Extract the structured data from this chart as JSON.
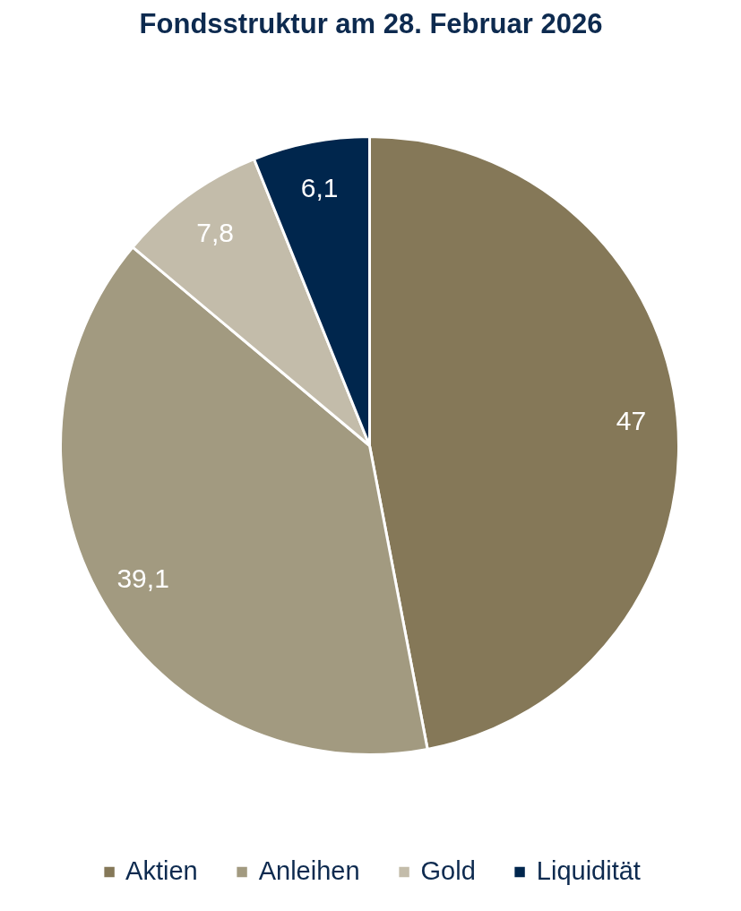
{
  "chart_data": {
    "type": "pie",
    "title": "Fondsstruktur am 28. Februar 2026",
    "categories": [
      "Aktien",
      "Anleihen",
      "Gold",
      "Liquidität"
    ],
    "values": [
      47,
      39.1,
      7.8,
      6.1
    ],
    "colors": [
      "#857858",
      "#a29a80",
      "#c3bcaa",
      "#00264d"
    ],
    "value_labels": [
      "47",
      "39,1",
      "7,8",
      "6,1"
    ],
    "legend": "bottom"
  }
}
